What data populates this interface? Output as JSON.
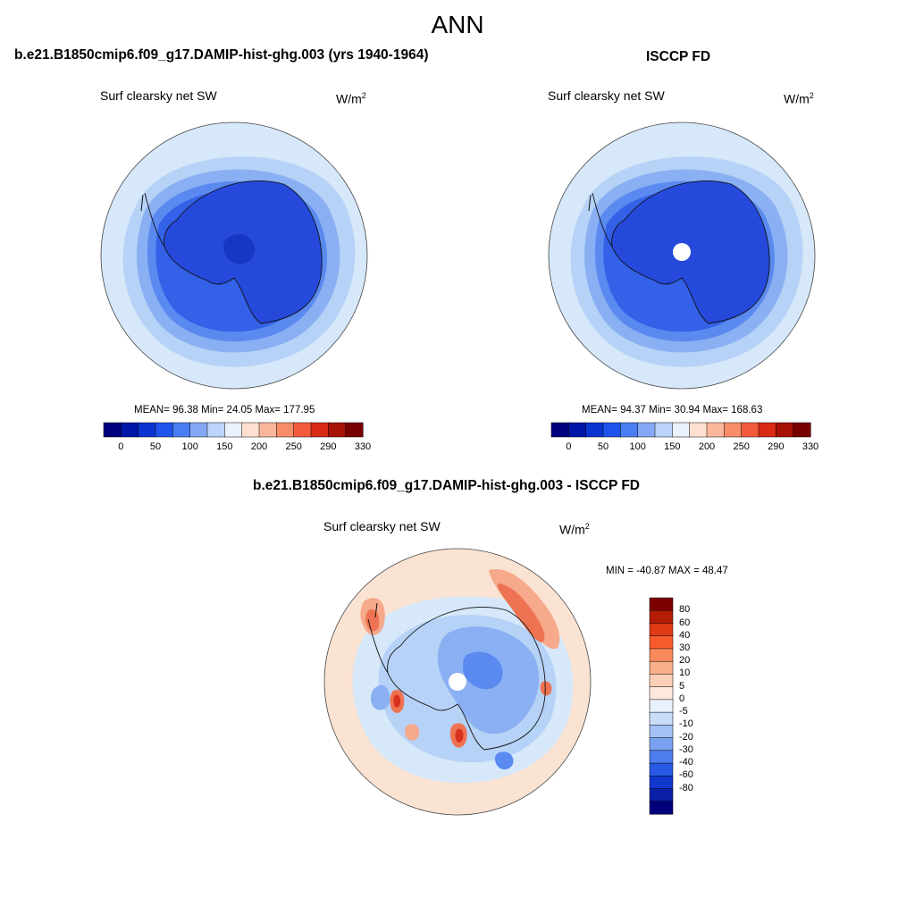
{
  "title": "ANN",
  "palette": {
    "ocean_light": "#d6e8f9",
    "ring2": "#b6d2f6",
    "ring3": "#8ab0f3",
    "ring4": "#5a8af0",
    "ring5": "#3362e8",
    "land": "#2449db",
    "pole_dark": "#1636c4",
    "warm_faint": "#fbe3d3",
    "warm_mid": "#f6a98b",
    "warm_strong": "#ee7352",
    "warm_red": "#d8321c"
  },
  "panels": [
    {
      "id": "model",
      "title": "b.e21.B1850cmip6.f09_g17.DAMIP-hist-ghg.003 (yrs 1940-1964)",
      "variable": "Surf clearsky net SW",
      "units_base": "W/m",
      "units_exp": "2",
      "stats": "MEAN=  96.38  Min=  24.05  Max= 177.95",
      "has_missing_pole": false
    },
    {
      "id": "obs",
      "title": "ISCCP FD",
      "variable": "Surf clearsky net SW",
      "units_base": "W/m",
      "units_exp": "2",
      "stats": "MEAN=  94.37  Min=  30.94  Max= 168.63",
      "has_missing_pole": true
    }
  ],
  "difference": {
    "title": "b.e21.B1850cmip6.f09_g17.DAMIP-hist-ghg.003 - ISCCP FD",
    "variable": "Surf clearsky net SW",
    "units_base": "W/m",
    "units_exp": "2",
    "stats": "MIN = -40.87 MAX =  48.47"
  },
  "colorbar_abs": {
    "colors": [
      "#00007f",
      "#0016a8",
      "#0a34d1",
      "#2052ee",
      "#4a7df2",
      "#84a8f5",
      "#bcd4f9",
      "#eaf2fd",
      "#fde0cf",
      "#fbb79a",
      "#f98d6a",
      "#f25a3b",
      "#d92a15",
      "#a81206",
      "#780000"
    ],
    "tick_labels": [
      "0",
      "50",
      "100",
      "150",
      "200",
      "250",
      "290",
      "330"
    ]
  },
  "colorbar_diff": {
    "colors": [
      "#7d0000",
      "#b51c05",
      "#de3a14",
      "#f85c2d",
      "#fa8a5c",
      "#fbb08c",
      "#fcd0b6",
      "#fde9dc",
      "#e8f1fc",
      "#c9dcf8",
      "#a4c1f5",
      "#7aa1f1",
      "#4d7ced",
      "#285ae6",
      "#1237cf",
      "#0a1fa8",
      "#00007a"
    ],
    "tick_labels": [
      "80",
      "60",
      "40",
      "30",
      "20",
      "10",
      "5",
      "0",
      "-5",
      "-10",
      "-20",
      "-30",
      "-40",
      "-60",
      "-80"
    ]
  }
}
